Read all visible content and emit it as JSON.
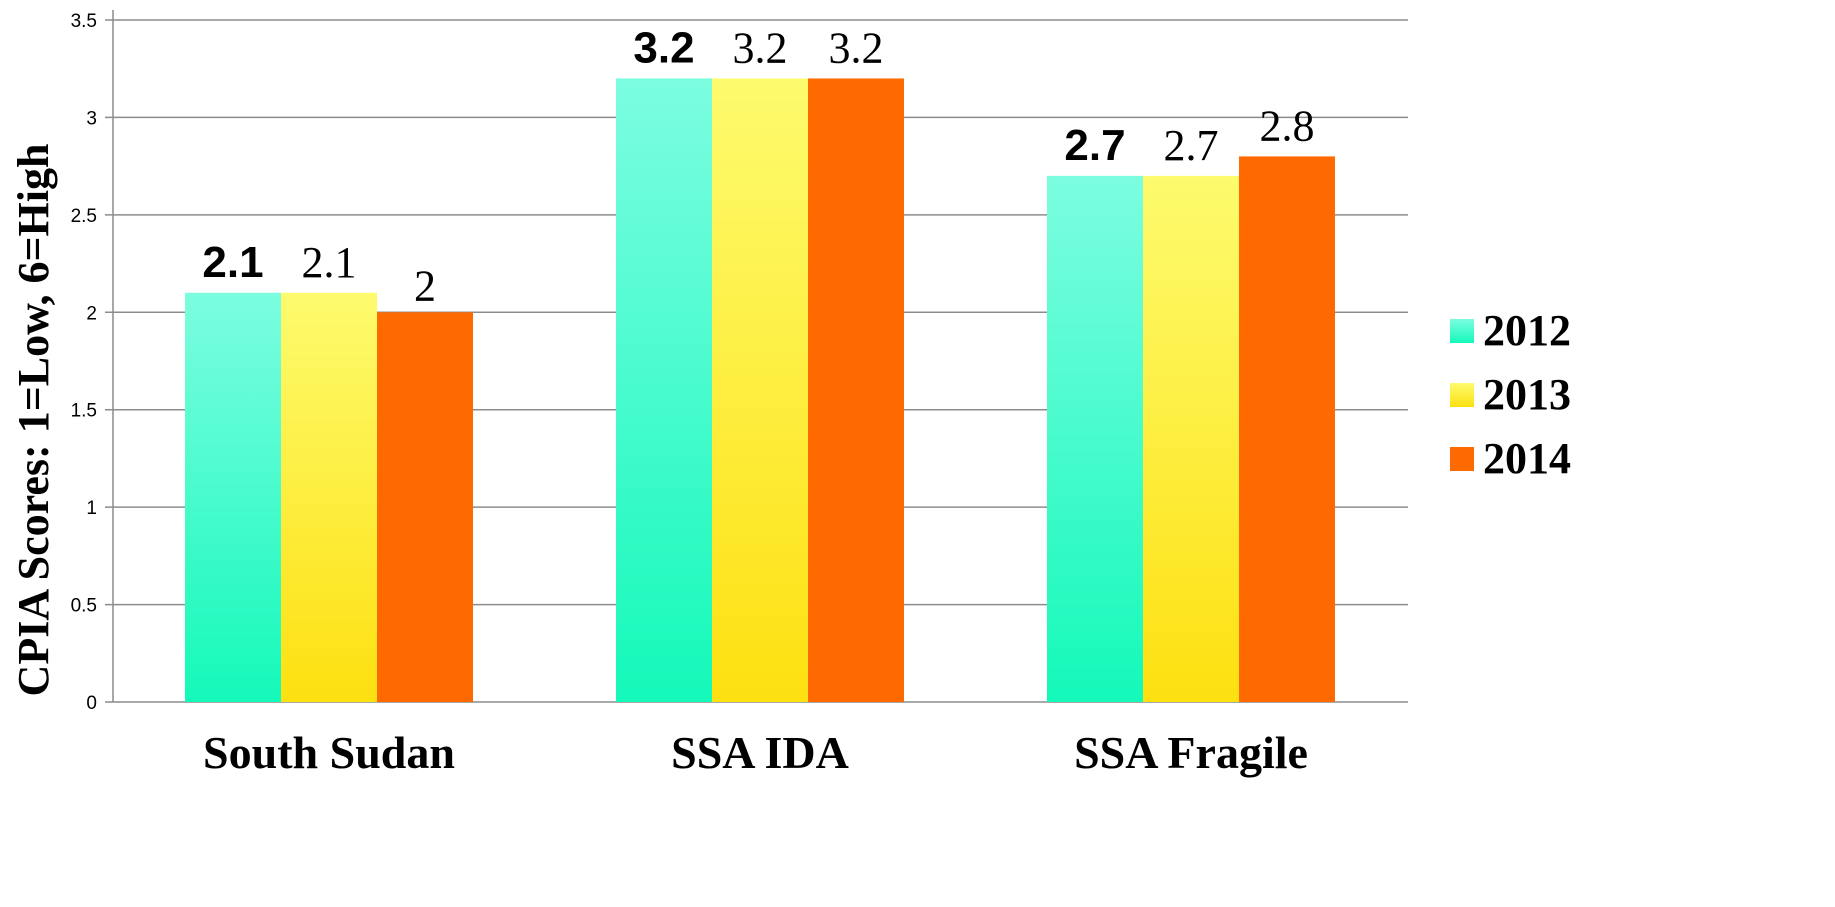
{
  "chart_data": {
    "type": "bar",
    "ylabel": "CPIA Scores: 1=Low, 6=High",
    "xlabel": "",
    "ylim": [
      0,
      3.5
    ],
    "yticks": [
      "0",
      "0.5",
      "1",
      "1.5",
      "2",
      "2.5",
      "3",
      "3.5"
    ],
    "grid": true,
    "legend_position": "right",
    "categories": [
      "South Sudan",
      "SSA IDA",
      "SSA Fragile"
    ],
    "series": [
      {
        "name": "2012",
        "values": [
          2.1,
          3.2,
          2.7
        ],
        "labels": [
          "2.1",
          "3.2",
          "2.7"
        ],
        "color_top": "#7cfde0",
        "color_bottom": "#14f9b9"
      },
      {
        "name": "2013",
        "values": [
          2.1,
          3.2,
          2.7
        ],
        "labels": [
          "2.1",
          "3.2",
          "2.7"
        ],
        "color_top": "#fdfb6e",
        "color_bottom": "#fde010"
      },
      {
        "name": "2014",
        "values": [
          2.0,
          3.2,
          2.8
        ],
        "labels": [
          "2",
          "3.2",
          "2.8"
        ],
        "color_top": "#ff6a00",
        "color_bottom": "#ff6a00"
      }
    ]
  }
}
